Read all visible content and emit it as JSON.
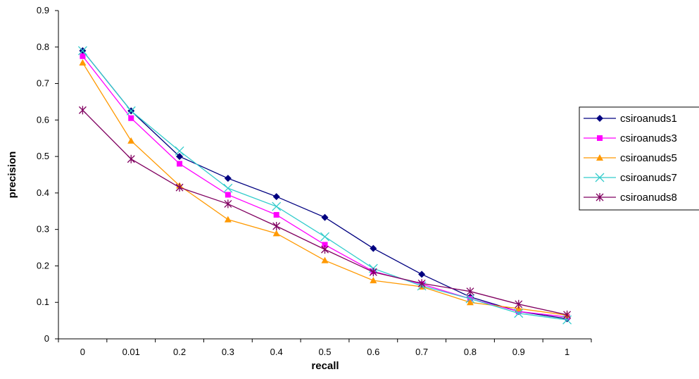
{
  "chart_data": {
    "type": "line",
    "title": "",
    "xlabel": "recall",
    "ylabel": "precision",
    "categories": [
      "0",
      "0.01",
      "0.2",
      "0.3",
      "0.4",
      "0.5",
      "0.6",
      "0.7",
      "0.8",
      "0.9",
      "1"
    ],
    "ylim": [
      0,
      0.9
    ],
    "yticks": [
      "0",
      "0.1",
      "0.2",
      "0.3",
      "0.4",
      "0.5",
      "0.6",
      "0.7",
      "0.8",
      "0.9"
    ],
    "grid": false,
    "legend_position": "right",
    "series": [
      {
        "name": "csiroanuds1",
        "color": "#000080",
        "marker": "diamond",
        "values": [
          0.79,
          0.625,
          0.5,
          0.44,
          0.39,
          0.333,
          0.248,
          0.177,
          0.115,
          0.075,
          0.055
        ]
      },
      {
        "name": "csiroanuds3",
        "color": "#ff00ff",
        "marker": "square",
        "values": [
          0.775,
          0.605,
          0.48,
          0.395,
          0.34,
          0.258,
          0.185,
          0.15,
          0.11,
          0.075,
          0.06
        ]
      },
      {
        "name": "csiroanuds5",
        "color": "#ff9900",
        "marker": "triangle",
        "values": [
          0.757,
          0.543,
          0.42,
          0.327,
          0.289,
          0.215,
          0.16,
          0.143,
          0.1,
          0.083,
          0.065
        ]
      },
      {
        "name": "csiroanuds7",
        "color": "#33cccc",
        "marker": "x",
        "values": [
          0.79,
          0.625,
          0.515,
          0.413,
          0.363,
          0.28,
          0.193,
          0.145,
          0.11,
          0.07,
          0.052
        ]
      },
      {
        "name": "csiroanuds8",
        "color": "#800060",
        "marker": "star",
        "values": [
          0.627,
          0.493,
          0.415,
          0.37,
          0.309,
          0.245,
          0.183,
          0.152,
          0.13,
          0.095,
          0.066
        ]
      }
    ]
  }
}
